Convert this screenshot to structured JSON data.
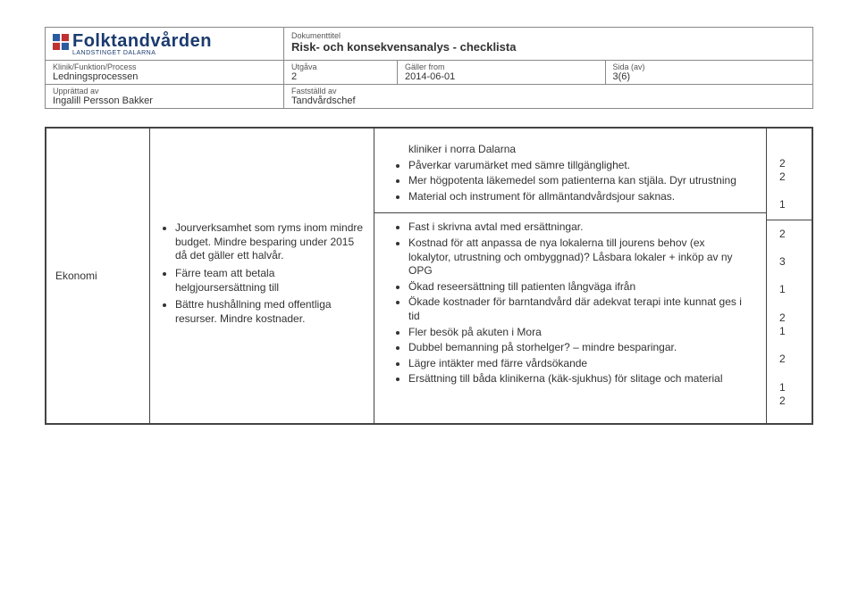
{
  "header": {
    "logo_text": "Folktandvården",
    "logo_sub": "LANDSTINGET DALARNA",
    "klinik_label": "Klinik/Funktion/Process",
    "klinik_value": "Ledningsprocessen",
    "upprattad_label": "Upprättad av",
    "upprattad_value": "Ingalill Persson Bakker",
    "doktitel_label": "Dokumenttitel",
    "doktitel_value": "Risk- och konsekvensanalys - checklista",
    "utgava_label": "Utgåva",
    "utgava_value": "2",
    "galler_label": "Gäller from",
    "galler_value": "2014-06-01",
    "sida_label": "Sida (av)",
    "sida_value": "3(6)",
    "faststalld_label": "Fastställd av",
    "faststalld_value": "Tandvårdschef"
  },
  "row": {
    "category": "Ekonomi",
    "col2_items": [
      "Jourverksamhet som ryms inom mindre budget. Mindre besparing under 2015 då det gäller ett halvår.",
      "Färre team att betala helgjoursersättning till",
      "Bättre hushållning med offentliga resurser. Mindre kostnader."
    ],
    "col3_top": [
      "kliniker i norra Dalarna",
      "Påverkar varumärket med sämre tillgänglighet.",
      "Mer högpotenta läkemedel som patienterna kan stjäla. Dyr utrustning",
      "Material och instrument för allmäntandvårdsjour saknas."
    ],
    "col3_bottom": [
      "Fast i skrivna avtal med ersättningar.",
      "Kostnad för att anpassa de nya lokalerna till jourens behov (ex lokalytor, utrustning och ombyggnad)? Låsbara lokaler + inköp av ny OPG",
      "Ökad reseersättning till patienten långväga ifrån",
      "Ökade kostnader för barntandvård där adekvat terapi inte kunnat ges i tid",
      "Fler besök på akuten i Mora",
      "Dubbel bemanning på storhelger? – mindre besparingar.",
      "Lägre intäkter med färre vårdsökande",
      "Ersättning till båda klinikerna (käk-sjukhus) för slitage och material"
    ],
    "nums_top": [
      "",
      "2",
      "2",
      "",
      "1"
    ],
    "nums_bottom": [
      "2",
      "",
      "3",
      "",
      "1",
      "",
      "2",
      "1",
      "",
      "2",
      "",
      "1",
      "2"
    ]
  }
}
